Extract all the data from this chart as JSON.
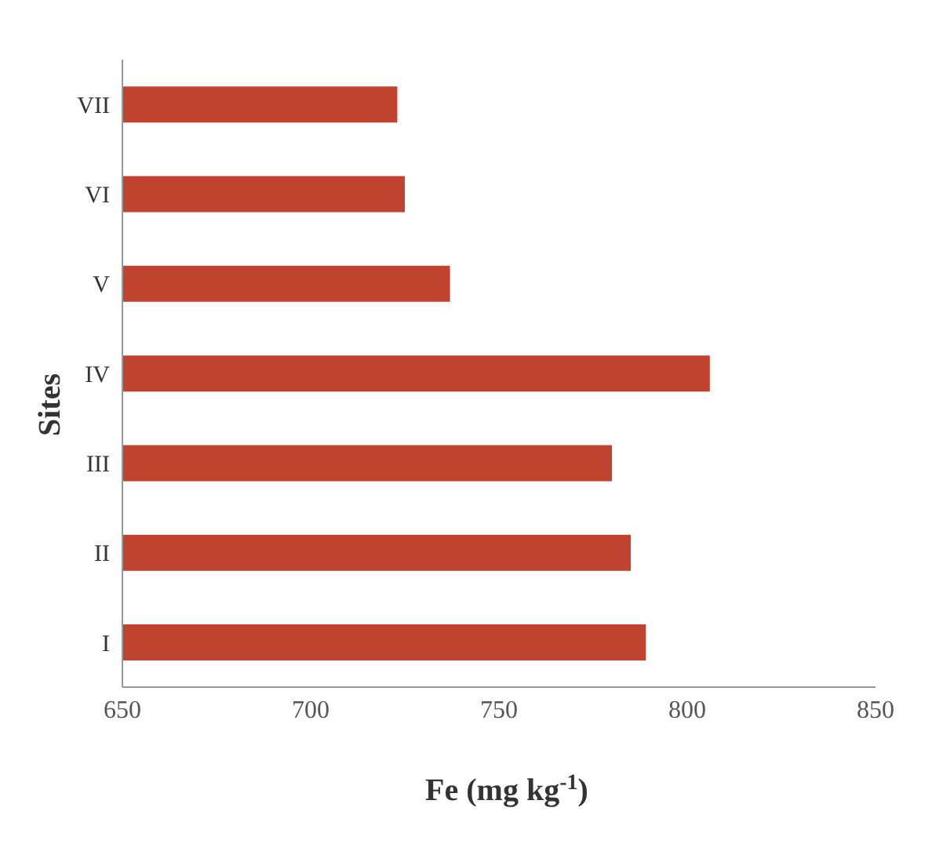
{
  "chart_data": {
    "type": "bar",
    "orientation": "horizontal",
    "categories": [
      "VII",
      "VI",
      "V",
      "IV",
      "III",
      "II",
      "I"
    ],
    "values": [
      723,
      725,
      737,
      806,
      780,
      785,
      789
    ],
    "color": "#c0432f",
    "xlim": [
      650,
      850
    ],
    "xticks": [
      650,
      700,
      750,
      800,
      850
    ],
    "xlabel": "Fe (mg kg$^{-1}$)",
    "ylabel": "Sites",
    "grid": false,
    "legend": false
  }
}
